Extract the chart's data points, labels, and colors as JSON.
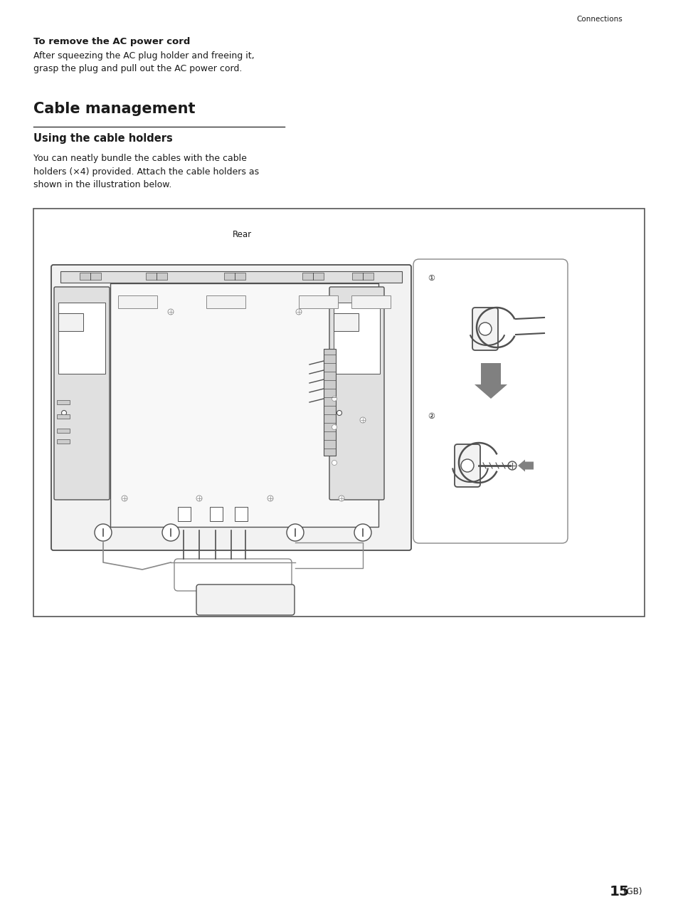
{
  "page_width": 9.54,
  "page_height": 12.74,
  "bg_color": "#ffffff",
  "header_text": "Connections",
  "bold_title": "To remove the AC power cord",
  "body_text1": "After squeezing the AC plug holder and freeing it,\ngrasp the plug and pull out the AC power cord.",
  "section_title": "Cable management",
  "subsection_title": "Using the cable holders",
  "body_text2": "You can neatly bundle the cables with the cable\nholders (×4) provided. Attach the cable holders as\nshown in the illustration below.",
  "rear_label": "Rear",
  "footnote": "15",
  "footnote_sub": "(GB)",
  "text_color": "#1a1a1a",
  "dark_gray": "#505050",
  "med_gray": "#888888",
  "light_gray": "#c0c0c0",
  "arrow_gray": "#808080",
  "fill_light": "#f2f2f2",
  "fill_med": "#e0e0e0",
  "fill_dark": "#cccccc"
}
